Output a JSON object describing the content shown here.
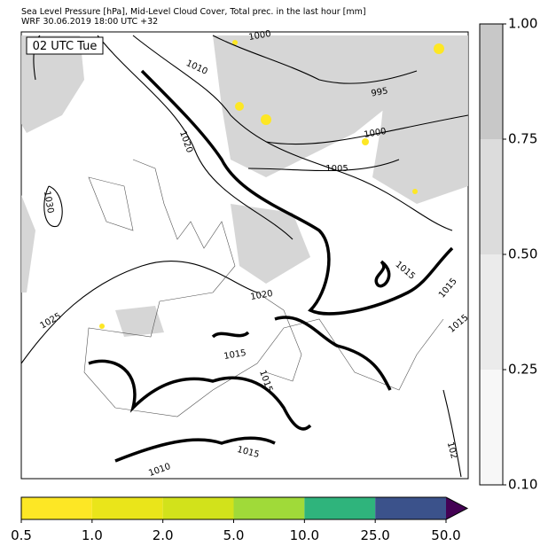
{
  "header": {
    "title": "Sea Level Pressure [hPa], Mid-Level Cloud Cover, Total prec. in the last hour [mm]",
    "subtitle": "WRF 30.06.2019 18:00 UTC +32"
  },
  "time_label": "02 UTC Tue",
  "isobar_labels": [
    "1000",
    "1010",
    "995",
    "1020",
    "1000",
    "1005",
    "1030",
    "1025",
    "1020",
    "1015",
    "1015",
    "1015",
    "1015",
    "1015",
    "1015",
    "1010",
    "102"
  ],
  "cloud_colorbar": {
    "ticks": [
      "0.10",
      "0.25",
      "0.50",
      "0.75",
      "1.00"
    ],
    "colors": [
      "#f7f7f7",
      "#ebebeb",
      "#dcdcdc",
      "#c8c8c8"
    ]
  },
  "precip_colorbar": {
    "ticks": [
      "0.5",
      "1.0",
      "2.0",
      "5.0",
      "10.0",
      "25.0",
      "50.0"
    ],
    "colors": [
      "#fde725",
      "#eae51a",
      "#d2e21b",
      "#a0da39",
      "#2fb47c",
      "#3b528b",
      "#440154"
    ]
  }
}
